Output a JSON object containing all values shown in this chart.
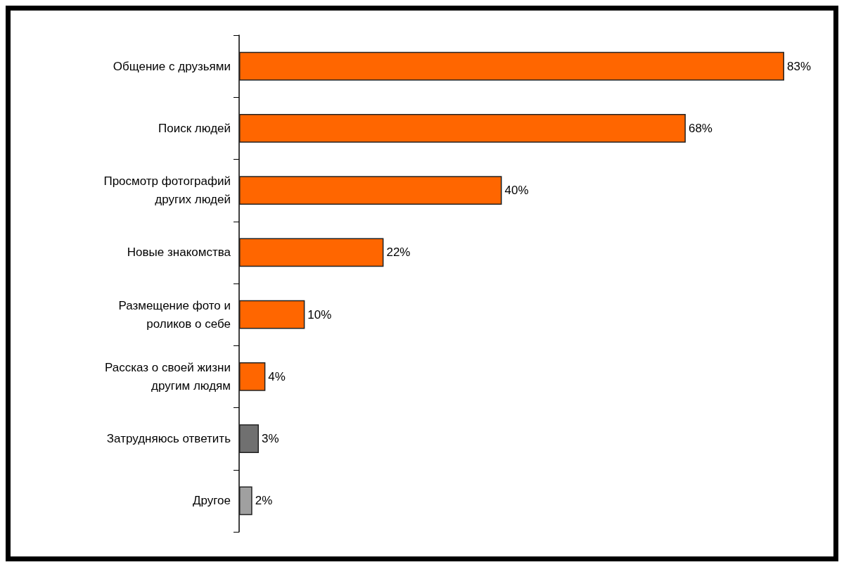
{
  "chart_data": {
    "type": "bar",
    "orientation": "horizontal",
    "categories": [
      "Общение с друзьями",
      "Поиск людей",
      "Просмотр фотографий\nдругих людей",
      "Новые знакомства",
      "Размещение фото и\nроликов о себе",
      "Рассказ о своей жизни\nдругим людям",
      "Затрудняюсь ответить",
      "Другое"
    ],
    "values": [
      83,
      68,
      40,
      22,
      10,
      4,
      3,
      2
    ],
    "value_labels": [
      "83%",
      "68%",
      "40%",
      "22%",
      "10%",
      "4%",
      "3%",
      "2%"
    ],
    "colors": [
      "#ff6600",
      "#ff6600",
      "#ff6600",
      "#ff6600",
      "#ff6600",
      "#ff6600",
      "#707070",
      "#a0a0a0"
    ],
    "grid": false
  }
}
